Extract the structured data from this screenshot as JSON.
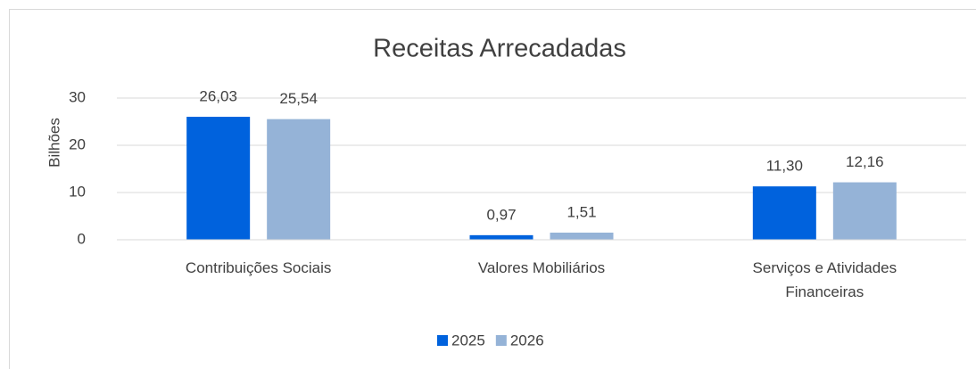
{
  "chart_data": {
    "type": "bar",
    "title": "Receitas Arrecadadas",
    "y_label": "Bilhões",
    "categories": [
      "Contribuições Sociais",
      "Valores Mobiliários",
      "Serviços e Atividades Financeiras"
    ],
    "series": [
      {
        "name": "2025",
        "color": "#0062dd",
        "values": [
          26.03,
          0.97,
          11.3
        ],
        "value_labels": [
          "26,03",
          "0,97",
          "11,30"
        ]
      },
      {
        "name": "2026",
        "color": "#95b3d7",
        "values": [
          25.54,
          1.51,
          12.16
        ],
        "value_labels": [
          "25,54",
          "1,51",
          "12,16"
        ]
      }
    ],
    "ylim": [
      0,
      30
    ],
    "yticks": [
      0,
      10,
      20,
      30
    ],
    "grid": true,
    "legend": "bottom"
  }
}
